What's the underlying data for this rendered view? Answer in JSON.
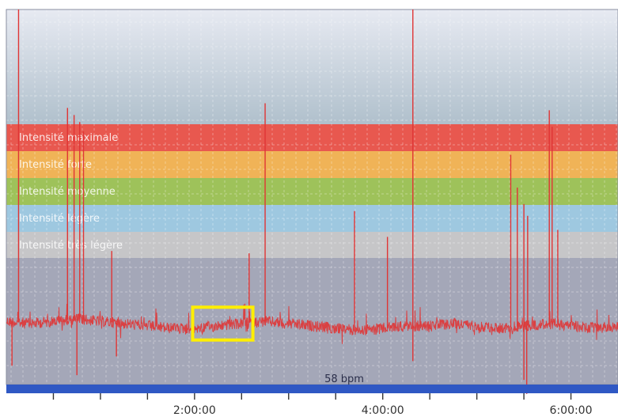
{
  "chart_data": {
    "type": "line",
    "title": "",
    "xlabel": "",
    "ylabel": "",
    "x_unit": "elapsed time (h:mm:ss)",
    "xlim": [
      0,
      6.5
    ],
    "ylim": [
      40,
      200
    ],
    "grid": true,
    "x_ticks": [
      {
        "value": 2,
        "label": "2:00:00"
      },
      {
        "value": 4,
        "label": "4:00:00"
      },
      {
        "value": 6,
        "label": "6:00:00"
      }
    ],
    "zones": [
      {
        "label": "Intensité maximale",
        "color": "#e8584f"
      },
      {
        "label": "Intensité forte",
        "color": "#f0b357"
      },
      {
        "label": "Intensité moyenne",
        "color": "#9ec25a"
      },
      {
        "label": "Intensité légère",
        "color": "#9ec8e0"
      },
      {
        "label": "Intensité très légère",
        "color": "#c6c6c8"
      }
    ],
    "baseline_label": "58 bpm",
    "series": [
      {
        "color": "#e03535",
        "x": [
          0,
          0.25,
          0.5,
          0.75,
          1.0,
          1.25,
          1.5,
          1.75,
          2.0,
          2.25,
          2.5,
          2.75,
          3.0,
          3.25,
          3.5,
          3.75,
          4.0,
          4.25,
          4.5,
          4.75,
          5.0,
          5.25,
          5.5,
          5.75,
          6.0,
          6.25,
          6.5
        ],
        "values": [
          67,
          66,
          67,
          68,
          67,
          66,
          65,
          64,
          64,
          65,
          66,
          67,
          66,
          65,
          64,
          63,
          64,
          65,
          65,
          66,
          65,
          64,
          65,
          66,
          65,
          64,
          65
        ],
        "spikes": [
          {
            "x": 0.13,
            "value": 200
          },
          {
            "x": 0.65,
            "value": 158
          },
          {
            "x": 0.72,
            "value": 155
          },
          {
            "x": 0.78,
            "value": 152
          },
          {
            "x": 0.82,
            "value": 148
          },
          {
            "x": 1.12,
            "value": 97
          },
          {
            "x": 2.58,
            "value": 96
          },
          {
            "x": 2.75,
            "value": 160
          },
          {
            "x": 3.7,
            "value": 114
          },
          {
            "x": 4.05,
            "value": 103
          },
          {
            "x": 4.32,
            "value": 200
          },
          {
            "x": 5.36,
            "value": 138
          },
          {
            "x": 5.43,
            "value": 124
          },
          {
            "x": 5.5,
            "value": 117
          },
          {
            "x": 5.54,
            "value": 112
          },
          {
            "x": 5.77,
            "value": 157
          },
          {
            "x": 5.8,
            "value": 150
          },
          {
            "x": 5.86,
            "value": 106
          }
        ],
        "dips": [
          {
            "x": 0.06,
            "value": 48
          },
          {
            "x": 0.75,
            "value": 44
          },
          {
            "x": 1.17,
            "value": 52
          },
          {
            "x": 4.32,
            "value": 50
          },
          {
            "x": 5.5,
            "value": 42
          },
          {
            "x": 5.53,
            "value": 36
          }
        ]
      }
    ],
    "highlight": {
      "x_start": 1.98,
      "x_end": 2.62,
      "y_min": 59,
      "y_max": 73,
      "color": "#ffee00"
    }
  }
}
